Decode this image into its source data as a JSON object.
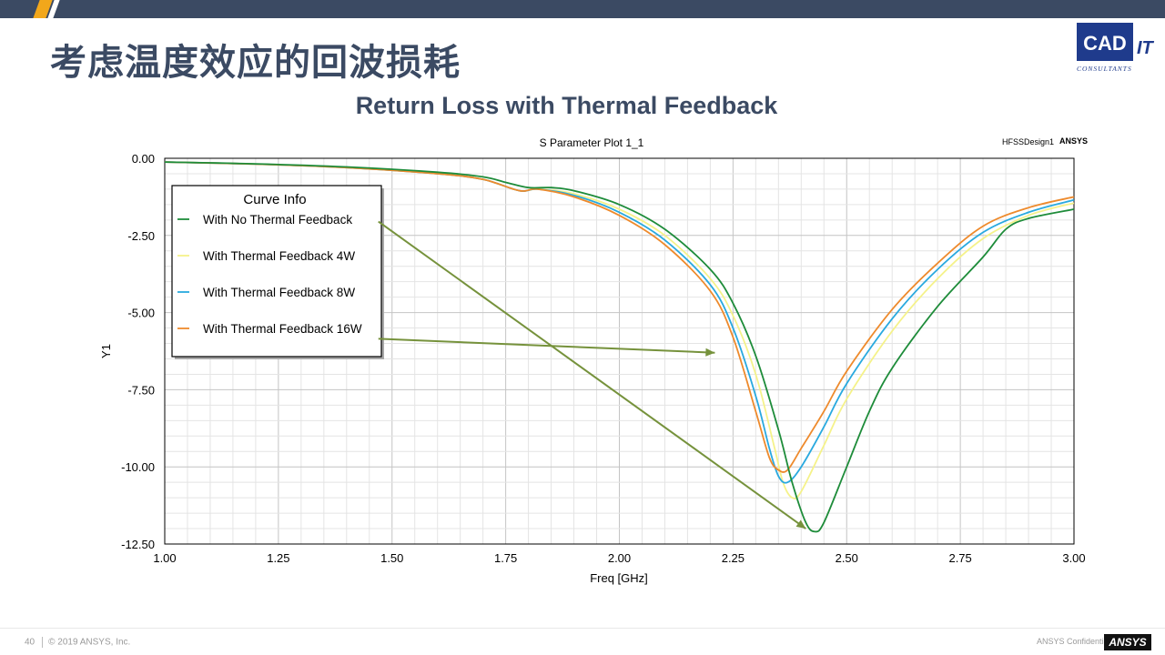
{
  "slide": {
    "title": "考虑温度效应的回波损耗",
    "subtitle": "Return Loss with Thermal Feedback",
    "logo_text": "CAD",
    "logo_suffix": "IT",
    "logo_sub": "CONSULTANTS",
    "page_number": "40",
    "copyright": "© 2019 ANSYS, Inc.",
    "confidential": "ANSYS Confidential",
    "brand": "ANSYS"
  },
  "colors": {
    "header_bar": "#3b4a63",
    "accent": "#f2a71b",
    "title": "#3b4a63",
    "arrow": "#76923c"
  },
  "chart_data": {
    "type": "line",
    "title": "S Parameter Plot 1_1",
    "design_label": "HFSSDesign1",
    "brand_label": "ANSYS",
    "xlabel": "Freq [GHz]",
    "ylabel": "Y1",
    "xlim": [
      1.0,
      3.0
    ],
    "ylim": [
      -12.5,
      0.0
    ],
    "x_ticks": [
      "1.00",
      "1.25",
      "1.50",
      "1.75",
      "2.00",
      "2.25",
      "2.50",
      "2.75",
      "3.00"
    ],
    "y_ticks": [
      "0.00",
      "-2.50",
      "-5.00",
      "-7.50",
      "-10.00",
      "-12.50"
    ],
    "grid": true,
    "legend_title": "Curve Info",
    "legend_position": "top-left",
    "series": [
      {
        "name": "With No Thermal Feedback",
        "color": "#1e8c3a",
        "points": [
          [
            1.0,
            -0.12
          ],
          [
            1.2,
            -0.18
          ],
          [
            1.4,
            -0.28
          ],
          [
            1.6,
            -0.45
          ],
          [
            1.7,
            -0.6
          ],
          [
            1.75,
            -0.78
          ],
          [
            1.8,
            -0.95
          ],
          [
            1.85,
            -0.95
          ],
          [
            1.9,
            -1.05
          ],
          [
            2.0,
            -1.5
          ],
          [
            2.1,
            -2.3
          ],
          [
            2.2,
            -3.6
          ],
          [
            2.25,
            -4.7
          ],
          [
            2.3,
            -6.4
          ],
          [
            2.35,
            -8.8
          ],
          [
            2.38,
            -10.5
          ],
          [
            2.41,
            -11.8
          ],
          [
            2.43,
            -12.1
          ],
          [
            2.45,
            -11.8
          ],
          [
            2.5,
            -10.0
          ],
          [
            2.55,
            -8.2
          ],
          [
            2.6,
            -6.8
          ],
          [
            2.7,
            -4.8
          ],
          [
            2.8,
            -3.2
          ],
          [
            2.85,
            -2.3
          ],
          [
            2.9,
            -1.95
          ],
          [
            3.0,
            -1.65
          ]
        ]
      },
      {
        "name": "With Thermal Feedback 4W",
        "color": "#f5f28a",
        "points": [
          [
            1.0,
            -0.12
          ],
          [
            1.2,
            -0.19
          ],
          [
            1.4,
            -0.3
          ],
          [
            1.6,
            -0.5
          ],
          [
            1.7,
            -0.68
          ],
          [
            1.78,
            -1.05
          ],
          [
            1.82,
            -1.0
          ],
          [
            1.9,
            -1.15
          ],
          [
            2.0,
            -1.65
          ],
          [
            2.1,
            -2.5
          ],
          [
            2.2,
            -3.9
          ],
          [
            2.25,
            -5.1
          ],
          [
            2.3,
            -7.0
          ],
          [
            2.34,
            -9.3
          ],
          [
            2.36,
            -10.5
          ],
          [
            2.38,
            -11.0
          ],
          [
            2.4,
            -10.8
          ],
          [
            2.45,
            -9.3
          ],
          [
            2.5,
            -7.8
          ],
          [
            2.6,
            -5.6
          ],
          [
            2.7,
            -3.9
          ],
          [
            2.8,
            -2.6
          ],
          [
            2.9,
            -1.85
          ],
          [
            3.0,
            -1.45
          ]
        ]
      },
      {
        "name": "With Thermal Feedback 8W",
        "color": "#29a9df",
        "points": [
          [
            1.0,
            -0.12
          ],
          [
            1.2,
            -0.19
          ],
          [
            1.4,
            -0.3
          ],
          [
            1.6,
            -0.5
          ],
          [
            1.7,
            -0.68
          ],
          [
            1.78,
            -1.05
          ],
          [
            1.82,
            -1.0
          ],
          [
            1.9,
            -1.2
          ],
          [
            2.0,
            -1.75
          ],
          [
            2.1,
            -2.65
          ],
          [
            2.2,
            -4.1
          ],
          [
            2.25,
            -5.5
          ],
          [
            2.3,
            -7.7
          ],
          [
            2.33,
            -9.4
          ],
          [
            2.35,
            -10.3
          ],
          [
            2.37,
            -10.5
          ],
          [
            2.4,
            -10.0
          ],
          [
            2.45,
            -8.7
          ],
          [
            2.5,
            -7.3
          ],
          [
            2.6,
            -5.2
          ],
          [
            2.7,
            -3.6
          ],
          [
            2.8,
            -2.4
          ],
          [
            2.9,
            -1.75
          ],
          [
            3.0,
            -1.35
          ]
        ]
      },
      {
        "name": "With Thermal Feedback 16W",
        "color": "#ee8a2c",
        "points": [
          [
            1.0,
            -0.12
          ],
          [
            1.2,
            -0.19
          ],
          [
            1.4,
            -0.3
          ],
          [
            1.6,
            -0.5
          ],
          [
            1.7,
            -0.68
          ],
          [
            1.78,
            -1.05
          ],
          [
            1.82,
            -1.0
          ],
          [
            1.9,
            -1.25
          ],
          [
            2.0,
            -1.85
          ],
          [
            2.1,
            -2.8
          ],
          [
            2.2,
            -4.3
          ],
          [
            2.25,
            -5.8
          ],
          [
            2.3,
            -8.2
          ],
          [
            2.33,
            -9.7
          ],
          [
            2.35,
            -10.1
          ],
          [
            2.37,
            -10.1
          ],
          [
            2.4,
            -9.4
          ],
          [
            2.45,
            -8.2
          ],
          [
            2.5,
            -6.9
          ],
          [
            2.6,
            -4.9
          ],
          [
            2.7,
            -3.4
          ],
          [
            2.8,
            -2.2
          ],
          [
            2.9,
            -1.6
          ],
          [
            3.0,
            -1.25
          ]
        ]
      }
    ],
    "annotations": [
      {
        "type": "arrow",
        "from": [
          1.47,
          -2.05
        ],
        "to": [
          2.41,
          -12.0
        ]
      },
      {
        "type": "arrow",
        "from": [
          1.47,
          -5.85
        ],
        "to": [
          2.21,
          -6.3
        ]
      }
    ]
  }
}
